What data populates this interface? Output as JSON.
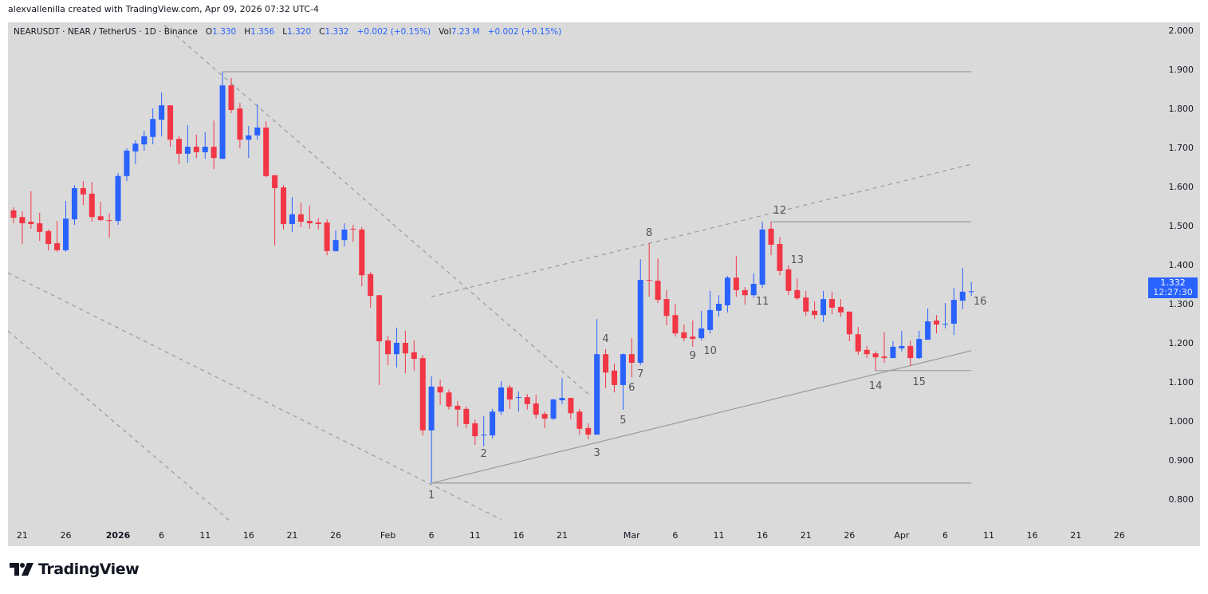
{
  "attribution": "alexvallenilla created with TradingView.com, Apr 09, 2026 07:32 UTC-4",
  "legend": {
    "symbol": "NEARUSDT · NEAR / TetherUS · 1D · Binance",
    "o_label": "O",
    "o": "1.330",
    "h_label": "H",
    "h": "1.356",
    "l_label": "L",
    "l": "1.320",
    "c_label": "C",
    "c": "1.332",
    "change": "+0.002 (+0.15%)",
    "vol_label": "Vol",
    "vol": "7.23 M",
    "vol_change": "+0.002 (+0.15%)"
  },
  "price_tag": {
    "price": "1.332",
    "countdown": "12:27:30"
  },
  "logo": {
    "text": "TradingView"
  },
  "colors": {
    "bull": "#2962ff",
    "bear": "#f23645",
    "background": "#dadada",
    "drawing": "#9a9a9a",
    "label": "#555555"
  },
  "chart_data": {
    "type": "candlestick",
    "symbol": "NEARUSDT",
    "interval": "1D",
    "ylim": [
      0.8,
      2.0
    ],
    "y_ticks": [
      "2.000",
      "1.900",
      "1.800",
      "1.700",
      "1.600",
      "1.500",
      "1.400",
      "1.300",
      "1.200",
      "1.100",
      "1.000",
      "0.900",
      "0.800"
    ],
    "x_ticks": [
      {
        "label": "21",
        "date": "2025-12-21"
      },
      {
        "label": "26",
        "date": "2025-12-26"
      },
      {
        "label": "2026",
        "date": "2026-01-01",
        "bold": true
      },
      {
        "label": "6",
        "date": "2026-01-06"
      },
      {
        "label": "11",
        "date": "2026-01-11"
      },
      {
        "label": "16",
        "date": "2026-01-16"
      },
      {
        "label": "21",
        "date": "2026-01-21"
      },
      {
        "label": "26",
        "date": "2026-01-26"
      },
      {
        "label": "Feb",
        "date": "2026-02-01"
      },
      {
        "label": "6",
        "date": "2026-02-06"
      },
      {
        "label": "11",
        "date": "2026-02-11"
      },
      {
        "label": "16",
        "date": "2026-02-16"
      },
      {
        "label": "21",
        "date": "2026-02-21"
      },
      {
        "label": "Mar",
        "date": "2026-03-01"
      },
      {
        "label": "6",
        "date": "2026-03-06"
      },
      {
        "label": "11",
        "date": "2026-03-11"
      },
      {
        "label": "16",
        "date": "2026-03-16"
      },
      {
        "label": "21",
        "date": "2026-03-21"
      },
      {
        "label": "26",
        "date": "2026-03-26"
      },
      {
        "label": "Apr",
        "date": "2026-04-01"
      },
      {
        "label": "6",
        "date": "2026-04-06"
      },
      {
        "label": "11",
        "date": "2026-04-11"
      },
      {
        "label": "16",
        "date": "2026-04-16"
      },
      {
        "label": "21",
        "date": "2026-04-21"
      },
      {
        "label": "26",
        "date": "2026-04-26"
      }
    ],
    "candles_columns": [
      "date",
      "open",
      "high",
      "low",
      "close"
    ],
    "candles": [
      [
        "2025-12-20",
        1.539,
        1.547,
        1.506,
        1.52
      ],
      [
        "2025-12-21",
        1.522,
        1.537,
        1.453,
        1.506
      ],
      [
        "2025-12-22",
        1.51,
        1.588,
        1.492,
        1.504
      ],
      [
        "2025-12-23",
        1.506,
        1.533,
        1.461,
        1.484
      ],
      [
        "2025-12-24",
        1.486,
        1.49,
        1.437,
        1.453
      ],
      [
        "2025-12-25",
        1.455,
        1.512,
        1.433,
        1.437
      ],
      [
        "2025-12-26",
        1.437,
        1.563,
        1.433,
        1.518
      ],
      [
        "2025-12-27",
        1.516,
        1.604,
        1.502,
        1.596
      ],
      [
        "2025-12-28",
        1.596,
        1.614,
        1.553,
        1.58
      ],
      [
        "2025-12-29",
        1.582,
        1.612,
        1.51,
        1.522
      ],
      [
        "2025-12-30",
        1.524,
        1.561,
        1.512,
        1.514
      ],
      [
        "2025-12-31",
        1.514,
        1.531,
        1.469,
        1.512
      ],
      [
        "2026-01-01",
        1.512,
        1.635,
        1.502,
        1.627
      ],
      [
        "2026-01-02",
        1.627,
        1.698,
        1.614,
        1.692
      ],
      [
        "2026-01-03",
        1.69,
        1.718,
        1.657,
        1.71
      ],
      [
        "2026-01-04",
        1.708,
        1.743,
        1.692,
        1.729
      ],
      [
        "2026-01-05",
        1.727,
        1.8,
        1.708,
        1.773
      ],
      [
        "2026-01-06",
        1.771,
        1.841,
        1.729,
        1.808
      ],
      [
        "2026-01-07",
        1.808,
        1.808,
        1.702,
        1.72
      ],
      [
        "2026-01-08",
        1.722,
        1.729,
        1.657,
        1.684
      ],
      [
        "2026-01-09",
        1.684,
        1.757,
        1.661,
        1.702
      ],
      [
        "2026-01-10",
        1.702,
        1.733,
        1.673,
        1.688
      ],
      [
        "2026-01-11",
        1.688,
        1.739,
        1.671,
        1.702
      ],
      [
        "2026-01-12",
        1.702,
        1.769,
        1.645,
        1.673
      ],
      [
        "2026-01-13",
        1.671,
        1.894,
        1.671,
        1.859
      ],
      [
        "2026-01-14",
        1.859,
        1.878,
        1.788,
        1.796
      ],
      [
        "2026-01-15",
        1.8,
        1.814,
        1.698,
        1.72
      ],
      [
        "2026-01-16",
        1.72,
        1.755,
        1.673,
        1.731
      ],
      [
        "2026-01-17",
        1.731,
        1.81,
        1.72,
        1.751
      ],
      [
        "2026-01-18",
        1.751,
        1.767,
        1.624,
        1.627
      ],
      [
        "2026-01-19",
        1.629,
        1.629,
        1.449,
        1.596
      ],
      [
        "2026-01-20",
        1.598,
        1.604,
        1.49,
        1.504
      ],
      [
        "2026-01-21",
        1.504,
        1.573,
        1.484,
        1.529
      ],
      [
        "2026-01-22",
        1.529,
        1.559,
        1.496,
        1.51
      ],
      [
        "2026-01-23",
        1.512,
        1.551,
        1.492,
        1.506
      ],
      [
        "2026-01-24",
        1.508,
        1.52,
        1.49,
        1.504
      ],
      [
        "2026-01-25",
        1.508,
        1.516,
        1.424,
        1.435
      ],
      [
        "2026-01-26",
        1.435,
        1.488,
        1.433,
        1.463
      ],
      [
        "2026-01-27",
        1.463,
        1.506,
        1.447,
        1.49
      ],
      [
        "2026-01-28",
        1.492,
        1.502,
        1.459,
        1.49
      ],
      [
        "2026-01-29",
        1.49,
        1.496,
        1.345,
        1.373
      ],
      [
        "2026-01-30",
        1.376,
        1.382,
        1.29,
        1.32
      ],
      [
        "2026-01-31",
        1.322,
        1.322,
        1.092,
        1.204
      ],
      [
        "2026-02-01",
        1.206,
        1.218,
        1.143,
        1.171
      ],
      [
        "2026-02-02",
        1.171,
        1.239,
        1.137,
        1.2
      ],
      [
        "2026-02-03",
        1.2,
        1.231,
        1.122,
        1.173
      ],
      [
        "2026-02-04",
        1.176,
        1.206,
        1.129,
        1.159
      ],
      [
        "2026-02-05",
        1.161,
        1.169,
        0.963,
        0.976
      ],
      [
        "2026-02-06",
        0.976,
        1.114,
        0.841,
        1.088
      ],
      [
        "2026-02-07",
        1.088,
        1.106,
        1.041,
        1.073
      ],
      [
        "2026-02-08",
        1.073,
        1.08,
        1.029,
        1.037
      ],
      [
        "2026-02-09",
        1.039,
        1.051,
        0.986,
        1.029
      ],
      [
        "2026-02-10",
        1.031,
        1.037,
        0.982,
        0.992
      ],
      [
        "2026-02-11",
        0.994,
        1.004,
        0.939,
        0.961
      ],
      [
        "2026-02-12",
        0.963,
        1.012,
        0.935,
        0.965
      ],
      [
        "2026-02-13",
        0.963,
        1.031,
        0.955,
        1.024
      ],
      [
        "2026-02-14",
        1.024,
        1.102,
        1.016,
        1.086
      ],
      [
        "2026-02-15",
        1.086,
        1.092,
        1.031,
        1.055
      ],
      [
        "2026-02-16",
        1.059,
        1.076,
        1.024,
        1.061
      ],
      [
        "2026-02-17",
        1.061,
        1.069,
        1.029,
        1.043
      ],
      [
        "2026-02-18",
        1.045,
        1.067,
        1.006,
        1.016
      ],
      [
        "2026-02-19",
        1.018,
        1.024,
        0.982,
        1.006
      ],
      [
        "2026-02-20",
        1.006,
        1.057,
        1.002,
        1.055
      ],
      [
        "2026-02-21",
        1.053,
        1.11,
        1.043,
        1.059
      ],
      [
        "2026-02-22",
        1.059,
        1.059,
        1.004,
        1.02
      ],
      [
        "2026-02-23",
        1.024,
        1.031,
        0.965,
        0.98
      ],
      [
        "2026-02-24",
        0.982,
        0.994,
        0.953,
        0.965
      ],
      [
        "2026-02-25",
        0.965,
        1.261,
        0.965,
        1.171
      ],
      [
        "2026-02-26",
        1.171,
        1.184,
        1.084,
        1.124
      ],
      [
        "2026-02-27",
        1.129,
        1.147,
        1.073,
        1.092
      ],
      [
        "2026-02-28",
        1.092,
        1.173,
        1.029,
        1.171
      ],
      [
        "2026-03-01",
        1.171,
        1.212,
        1.112,
        1.149
      ],
      [
        "2026-03-02",
        1.149,
        1.414,
        1.143,
        1.361
      ],
      [
        "2026-03-03",
        1.361,
        1.455,
        1.318,
        1.359
      ],
      [
        "2026-03-04",
        1.359,
        1.416,
        1.302,
        1.31
      ],
      [
        "2026-03-05",
        1.312,
        1.335,
        1.245,
        1.269
      ],
      [
        "2026-03-06",
        1.271,
        1.3,
        1.216,
        1.224
      ],
      [
        "2026-03-07",
        1.227,
        1.247,
        1.204,
        1.212
      ],
      [
        "2026-03-08",
        1.216,
        1.257,
        1.19,
        1.21
      ],
      [
        "2026-03-09",
        1.212,
        1.282,
        1.206,
        1.237
      ],
      [
        "2026-03-10",
        1.233,
        1.333,
        1.224,
        1.284
      ],
      [
        "2026-03-11",
        1.282,
        1.322,
        1.267,
        1.3
      ],
      [
        "2026-03-12",
        1.296,
        1.371,
        1.278,
        1.367
      ],
      [
        "2026-03-13",
        1.367,
        1.422,
        1.318,
        1.335
      ],
      [
        "2026-03-14",
        1.335,
        1.343,
        1.298,
        1.322
      ],
      [
        "2026-03-15",
        1.322,
        1.378,
        1.316,
        1.351
      ],
      [
        "2026-03-16",
        1.349,
        1.51,
        1.341,
        1.49
      ],
      [
        "2026-03-17",
        1.492,
        1.51,
        1.424,
        1.451
      ],
      [
        "2026-03-18",
        1.453,
        1.471,
        1.373,
        1.384
      ],
      [
        "2026-03-19",
        1.388,
        1.398,
        1.322,
        1.333
      ],
      [
        "2026-03-20",
        1.335,
        1.365,
        1.31,
        1.314
      ],
      [
        "2026-03-21",
        1.316,
        1.333,
        1.269,
        1.28
      ],
      [
        "2026-03-22",
        1.282,
        1.306,
        1.261,
        1.271
      ],
      [
        "2026-03-23",
        1.271,
        1.333,
        1.253,
        1.312
      ],
      [
        "2026-03-24",
        1.312,
        1.331,
        1.273,
        1.29
      ],
      [
        "2026-03-25",
        1.292,
        1.312,
        1.267,
        1.278
      ],
      [
        "2026-03-26",
        1.28,
        1.28,
        1.204,
        1.222
      ],
      [
        "2026-03-27",
        1.222,
        1.241,
        1.169,
        1.178
      ],
      [
        "2026-03-28",
        1.182,
        1.192,
        1.161,
        1.171
      ],
      [
        "2026-03-29",
        1.173,
        1.178,
        1.129,
        1.163
      ],
      [
        "2026-03-30",
        1.165,
        1.227,
        1.149,
        1.161
      ],
      [
        "2026-03-31",
        1.161,
        1.204,
        1.161,
        1.19
      ],
      [
        "2026-04-01",
        1.186,
        1.231,
        1.178,
        1.192
      ],
      [
        "2026-04-02",
        1.192,
        1.206,
        1.141,
        1.161
      ],
      [
        "2026-04-03",
        1.161,
        1.231,
        1.159,
        1.21
      ],
      [
        "2026-04-04",
        1.208,
        1.288,
        1.208,
        1.255
      ],
      [
        "2026-04-05",
        1.257,
        1.271,
        1.224,
        1.247
      ],
      [
        "2026-04-06",
        1.247,
        1.302,
        1.237,
        1.249
      ],
      [
        "2026-04-07",
        1.249,
        1.341,
        1.22,
        1.31
      ],
      [
        "2026-04-08",
        1.308,
        1.392,
        1.286,
        1.331
      ],
      [
        "2026-04-09",
        1.33,
        1.356,
        1.32,
        1.332
      ]
    ],
    "drawings": [
      {
        "kind": "horizontal",
        "style": "solid",
        "price": 1.894,
        "from": "2026-01-13",
        "to": "2026-04-09"
      },
      {
        "kind": "horizontal",
        "style": "solid",
        "price": 1.51,
        "from": "2026-03-17",
        "to": "2026-04-09"
      },
      {
        "kind": "horizontal",
        "style": "solid",
        "price": 1.129,
        "from": "2026-03-29",
        "to": "2026-04-09"
      },
      {
        "kind": "horizontal",
        "style": "solid",
        "price": 0.841,
        "from": "2026-02-06",
        "to": "2026-04-09"
      },
      {
        "kind": "trend",
        "style": "solid",
        "p1": [
          "2026-02-06",
          0.841
        ],
        "p2": [
          "2026-04-09",
          1.18
        ]
      },
      {
        "kind": "trend",
        "style": "dashed",
        "p1": [
          "2026-02-06",
          1.318
        ],
        "p2": [
          "2026-04-09",
          1.657
        ]
      },
      {
        "kind": "trend",
        "style": "dashed",
        "p1": [
          "2026-01-07",
          2.0
        ],
        "p2": [
          "2026-02-24",
          1.069
        ],
        "extend_left": true
      },
      {
        "kind": "trend",
        "style": "dashed",
        "p1": [
          "2025-12-20",
          1.372
        ],
        "p2": [
          "2026-02-14",
          0.748
        ],
        "extend_left": true
      },
      {
        "kind": "trend",
        "style": "dashed",
        "p1": [
          "2025-12-20",
          1.218
        ],
        "p2": [
          "2026-01-14",
          0.741
        ],
        "extend_left": true
      }
    ],
    "annotations": [
      {
        "text": "1",
        "date": "2026-02-06",
        "price": 0.812
      },
      {
        "text": "2",
        "date": "2026-02-12",
        "price": 0.918
      },
      {
        "text": "3",
        "date": "2026-02-25",
        "price": 0.92
      },
      {
        "text": "4",
        "date": "2026-02-26",
        "price": 1.212
      },
      {
        "text": "5",
        "date": "2026-02-28",
        "price": 1.004
      },
      {
        "text": "6",
        "date": "2026-03-01",
        "price": 1.088
      },
      {
        "text": "7",
        "date": "2026-03-02",
        "price": 1.122
      },
      {
        "text": "8",
        "date": "2026-03-03",
        "price": 1.484
      },
      {
        "text": "9",
        "date": "2026-03-08",
        "price": 1.169
      },
      {
        "text": "10",
        "date": "2026-03-10",
        "price": 1.182
      },
      {
        "text": "11",
        "date": "2026-03-16",
        "price": 1.308
      },
      {
        "text": "12",
        "date": "2026-03-18",
        "price": 1.541
      },
      {
        "text": "13",
        "date": "2026-03-20",
        "price": 1.414
      },
      {
        "text": "14",
        "date": "2026-03-29",
        "price": 1.092
      },
      {
        "text": "15",
        "date": "2026-04-03",
        "price": 1.102
      },
      {
        "text": "16",
        "date": "2026-04-10",
        "price": 1.308
      }
    ],
    "last_price": 1.332
  }
}
